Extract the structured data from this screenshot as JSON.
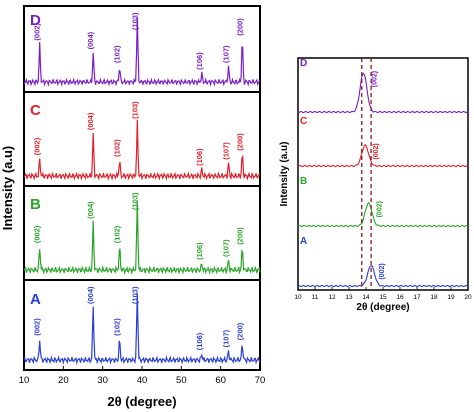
{
  "colors": {
    "D": "#7a1fc7",
    "C": "#e0202a",
    "B": "#2aa52a",
    "A": "#2a3fd4",
    "marker": "#8b1a1a"
  },
  "chart_data": [
    {
      "type": "line",
      "xlabel": "2θ (degree)",
      "ylabel": "Intensity (a.u)",
      "xlim": [
        10,
        70
      ],
      "xticks": [
        "10",
        "20",
        "30",
        "40",
        "50",
        "60",
        "70"
      ],
      "series": [
        {
          "name": "D",
          "peaks": [
            {
              "x": 14.0,
              "h": 0.55,
              "label": "(002)"
            },
            {
              "x": 27.6,
              "h": 0.42,
              "label": "(004)"
            },
            {
              "x": 34.3,
              "h": 0.22,
              "label": "(102)"
            },
            {
              "x": 38.8,
              "h": 0.95,
              "label": "(103)"
            },
            {
              "x": 55.2,
              "h": 0.12,
              "label": "(106)"
            },
            {
              "x": 62.0,
              "h": 0.22,
              "label": "(107)"
            },
            {
              "x": 65.5,
              "h": 0.62,
              "label": "(200)"
            }
          ]
        },
        {
          "name": "C",
          "peaks": [
            {
              "x": 14.0,
              "h": 0.22,
              "label": "(002)"
            },
            {
              "x": 27.6,
              "h": 0.55,
              "label": "(004)"
            },
            {
              "x": 34.3,
              "h": 0.2,
              "label": "(102)"
            },
            {
              "x": 38.8,
              "h": 0.7,
              "label": "(103)"
            },
            {
              "x": 55.2,
              "h": 0.08,
              "label": "(106)"
            },
            {
              "x": 62.0,
              "h": 0.16,
              "label": "(107)"
            },
            {
              "x": 65.5,
              "h": 0.28,
              "label": "(200)"
            }
          ]
        },
        {
          "name": "B",
          "peaks": [
            {
              "x": 14.0,
              "h": 0.3,
              "label": "(002)"
            },
            {
              "x": 27.6,
              "h": 0.62,
              "label": "(004)"
            },
            {
              "x": 34.3,
              "h": 0.3,
              "label": "(102)"
            },
            {
              "x": 38.8,
              "h": 0.9,
              "label": "(103)"
            },
            {
              "x": 55.2,
              "h": 0.08,
              "label": "(106)"
            },
            {
              "x": 62.0,
              "h": 0.12,
              "label": "(107)"
            },
            {
              "x": 65.5,
              "h": 0.28,
              "label": "(200)"
            }
          ]
        },
        {
          "name": "A",
          "peaks": [
            {
              "x": 14.0,
              "h": 0.28,
              "label": "(002)"
            },
            {
              "x": 27.6,
              "h": 0.75,
              "label": "(004)"
            },
            {
              "x": 34.3,
              "h": 0.28,
              "label": "(102)"
            },
            {
              "x": 38.8,
              "h": 0.95,
              "label": "(103)"
            },
            {
              "x": 55.2,
              "h": 0.08,
              "label": "(106)"
            },
            {
              "x": 62.0,
              "h": 0.12,
              "label": "(107)"
            },
            {
              "x": 65.5,
              "h": 0.22,
              "label": "(200)"
            }
          ]
        }
      ]
    },
    {
      "type": "line",
      "xlabel": "2θ (degree)",
      "ylabel": "Intensity (a.u)",
      "xlim": [
        10,
        20
      ],
      "xticks": [
        "10",
        "11",
        "12",
        "13",
        "14",
        "15",
        "16",
        "17",
        "18",
        "19",
        "20"
      ],
      "reference_lines": [
        13.75,
        14.3
      ],
      "series": [
        {
          "name": "D",
          "peak_x": 13.85,
          "h": 0.85,
          "label": "(002)"
        },
        {
          "name": "C",
          "peak_x": 13.95,
          "h": 0.45,
          "label": "(002)"
        },
        {
          "name": "B",
          "peak_x": 14.15,
          "h": 0.5,
          "label": "(002)"
        },
        {
          "name": "A",
          "peak_x": 14.3,
          "h": 0.45,
          "label": "(002)"
        }
      ]
    }
  ]
}
